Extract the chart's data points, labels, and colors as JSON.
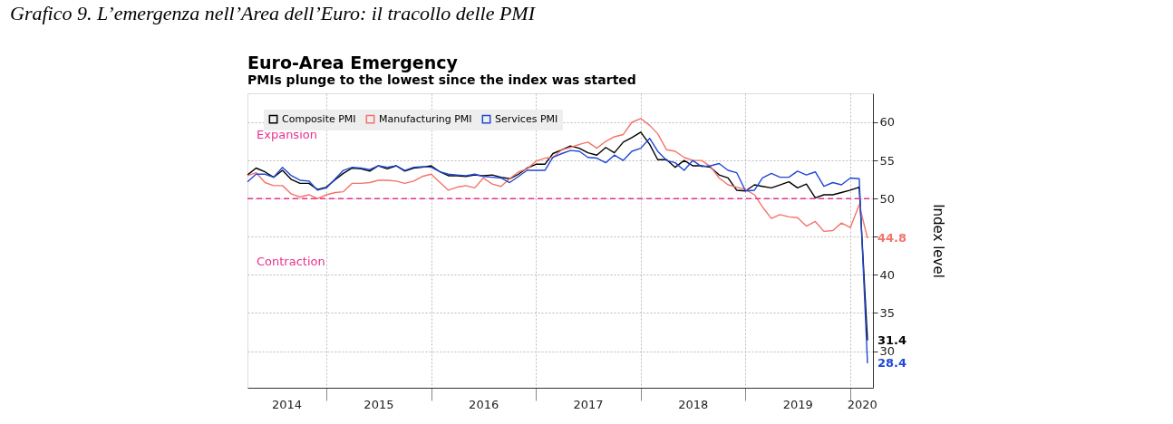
{
  "chart_data": {
    "type": "line",
    "title": "Euro-Area Emergency",
    "subtitle": "PMIs plunge to the lowest since the index was started",
    "ylabel": "Index level",
    "x": [
      "2014-04",
      "2014-05",
      "2014-06",
      "2014-07",
      "2014-08",
      "2014-09",
      "2014-10",
      "2014-11",
      "2014-12",
      "2015-01",
      "2015-02",
      "2015-03",
      "2015-04",
      "2015-05",
      "2015-06",
      "2015-07",
      "2015-08",
      "2015-09",
      "2015-10",
      "2015-11",
      "2015-12",
      "2016-01",
      "2016-02",
      "2016-03",
      "2016-04",
      "2016-05",
      "2016-06",
      "2016-07",
      "2016-08",
      "2016-09",
      "2016-10",
      "2016-11",
      "2016-12",
      "2017-01",
      "2017-02",
      "2017-03",
      "2017-04",
      "2017-05",
      "2017-06",
      "2017-07",
      "2017-08",
      "2017-09",
      "2017-10",
      "2017-11",
      "2017-12",
      "2018-01",
      "2018-02",
      "2018-03",
      "2018-04",
      "2018-05",
      "2018-06",
      "2018-07",
      "2018-08",
      "2018-09",
      "2018-10",
      "2018-11",
      "2018-12",
      "2019-01",
      "2019-02",
      "2019-03",
      "2019-04",
      "2019-05",
      "2019-06",
      "2019-07",
      "2019-08",
      "2019-09",
      "2019-10",
      "2019-11",
      "2019-12",
      "2020-01",
      "2020-02",
      "2020-03"
    ],
    "series": [
      {
        "name": "Composite PMI",
        "color": "#000000",
        "values": [
          53.1,
          54.0,
          53.5,
          52.8,
          53.7,
          52.5,
          52.0,
          52.0,
          51.2,
          51.5,
          52.5,
          53.3,
          54.0,
          53.9,
          53.6,
          54.3,
          53.9,
          54.3,
          53.6,
          54.0,
          54.1,
          54.3,
          53.5,
          53.0,
          53.0,
          52.9,
          53.1,
          53.0,
          53.1,
          52.8,
          52.6,
          53.2,
          54.0,
          54.5,
          54.5,
          55.9,
          56.4,
          56.9,
          56.6,
          56.0,
          55.7,
          56.7,
          56.0,
          57.4,
          58.0,
          58.7,
          57.1,
          55.1,
          55.1,
          54.1,
          55.0,
          54.3,
          54.3,
          54.1,
          53.1,
          52.7,
          51.1,
          51.0,
          51.8,
          51.6,
          51.4,
          51.8,
          52.2,
          51.4,
          51.9,
          50.1,
          50.5,
          50.5,
          50.8,
          51.1,
          51.5,
          31.4
        ],
        "value_labels": [
          null,
          null,
          null,
          null,
          null,
          null,
          null,
          null,
          null,
          null,
          null,
          null,
          null,
          null,
          null,
          null,
          null,
          null,
          null,
          null,
          null,
          null,
          null,
          null,
          null,
          null,
          null,
          null,
          null,
          null,
          null,
          null,
          null,
          null,
          null,
          null,
          null,
          null,
          null,
          null,
          null,
          null,
          null,
          null,
          null,
          null,
          null,
          null,
          null,
          null,
          null,
          null,
          null,
          null,
          null,
          null,
          null,
          null,
          null,
          null,
          null,
          null,
          null,
          null,
          null,
          null,
          null,
          null,
          null,
          null,
          null,
          "31.4"
        ]
      },
      {
        "name": "Manufacturing PMI",
        "color": "#f4736b",
        "values": [
          53.0,
          53.4,
          52.1,
          51.7,
          51.7,
          50.6,
          50.2,
          50.5,
          50.0,
          50.5,
          50.8,
          50.9,
          52.0,
          52.0,
          52.1,
          52.4,
          52.4,
          52.3,
          52.0,
          52.3,
          52.9,
          53.2,
          52.1,
          51.1,
          51.5,
          51.7,
          51.4,
          52.7,
          51.9,
          51.6,
          52.6,
          53.5,
          53.9,
          54.9,
          55.3,
          55.4,
          56.4,
          56.7,
          57.1,
          57.4,
          56.6,
          57.5,
          58.1,
          58.4,
          60.0,
          60.5,
          59.6,
          58.5,
          56.4,
          56.2,
          55.4,
          55.0,
          55.0,
          54.2,
          52.7,
          51.8,
          51.5,
          51.2,
          50.5,
          48.9,
          47.4,
          47.9,
          47.6,
          47.5,
          46.4,
          47.0,
          45.7,
          45.8,
          46.8,
          46.2,
          49.2,
          44.8
        ],
        "value_labels": [
          null,
          null,
          null,
          null,
          null,
          null,
          null,
          null,
          null,
          null,
          null,
          null,
          null,
          null,
          null,
          null,
          null,
          null,
          null,
          null,
          null,
          null,
          null,
          null,
          null,
          null,
          null,
          null,
          null,
          null,
          null,
          null,
          null,
          null,
          null,
          null,
          null,
          null,
          null,
          null,
          null,
          null,
          null,
          null,
          null,
          null,
          null,
          null,
          null,
          null,
          null,
          null,
          null,
          null,
          null,
          null,
          null,
          null,
          null,
          null,
          null,
          null,
          null,
          null,
          null,
          null,
          null,
          null,
          null,
          null,
          null,
          "44.8"
        ]
      },
      {
        "name": "Services PMI",
        "color": "#1f48d6",
        "values": [
          52.2,
          53.2,
          53.2,
          52.8,
          54.1,
          53.0,
          52.4,
          52.3,
          51.1,
          51.4,
          52.6,
          53.7,
          54.1,
          54.0,
          53.8,
          54.3,
          54.1,
          54.3,
          53.7,
          54.1,
          54.2,
          54.1,
          53.5,
          53.2,
          53.1,
          53.0,
          53.2,
          52.9,
          52.8,
          52.7,
          52.1,
          52.9,
          53.7,
          53.7,
          53.7,
          55.4,
          55.9,
          56.3,
          56.2,
          55.4,
          55.3,
          54.7,
          55.7,
          55.0,
          56.2,
          56.6,
          57.9,
          56.2,
          55.0,
          54.7,
          53.7,
          55.0,
          54.2,
          54.3,
          54.6,
          53.7,
          53.4,
          51.0,
          51.1,
          52.7,
          53.3,
          52.8,
          52.8,
          53.6,
          53.1,
          53.5,
          51.6,
          52.1,
          51.8,
          52.7,
          52.6,
          28.4
        ],
        "value_labels": [
          null,
          null,
          null,
          null,
          null,
          null,
          null,
          null,
          null,
          null,
          null,
          null,
          null,
          null,
          null,
          null,
          null,
          null,
          null,
          null,
          null,
          null,
          null,
          null,
          null,
          null,
          null,
          null,
          null,
          null,
          null,
          null,
          null,
          null,
          null,
          null,
          null,
          null,
          null,
          null,
          null,
          null,
          null,
          null,
          null,
          null,
          null,
          null,
          null,
          null,
          null,
          null,
          null,
          null,
          null,
          null,
          null,
          null,
          null,
          null,
          null,
          null,
          null,
          null,
          null,
          null,
          null,
          null,
          null,
          null,
          null,
          "28.4"
        ]
      }
    ],
    "xlim": [
      "2014-04",
      "2020-03-20"
    ],
    "xticks": [
      {
        "value": "2014-08-15",
        "label": "2014"
      },
      {
        "value": "2015-01-01",
        "label": null
      },
      {
        "value": "2015-07-01",
        "label": "2015"
      },
      {
        "value": "2016-01-01",
        "label": null
      },
      {
        "value": "2016-07-01",
        "label": "2016"
      },
      {
        "value": "2017-01-01",
        "label": null
      },
      {
        "value": "2017-07-01",
        "label": "2017"
      },
      {
        "value": "2018-01-01",
        "label": null
      },
      {
        "value": "2018-07-01",
        "label": "2018"
      },
      {
        "value": "2019-01-01",
        "label": null
      },
      {
        "value": "2019-07-01",
        "label": "2019"
      },
      {
        "value": "2020-01-01",
        "label": null
      },
      {
        "value": "2020-02-10",
        "label": "2020"
      }
    ],
    "ylim": [
      25.2,
      63.8
    ],
    "yticks": [
      30,
      35,
      40,
      {
        "value": 45,
        "label": null
      },
      50,
      55,
      60
    ],
    "ref_lines": [
      {
        "axis": "y",
        "value": 50,
        "color": "#e8318f",
        "line_style": "dashed"
      }
    ],
    "annotations": [
      "Grafico 9. L’emergenza nell’Area dell’Euro: il tracollo delle PMI",
      "Expansion",
      "Contraction"
    ],
    "legend": "top left",
    "grid": true,
    "line_style": "solid",
    "marker": "none"
  }
}
